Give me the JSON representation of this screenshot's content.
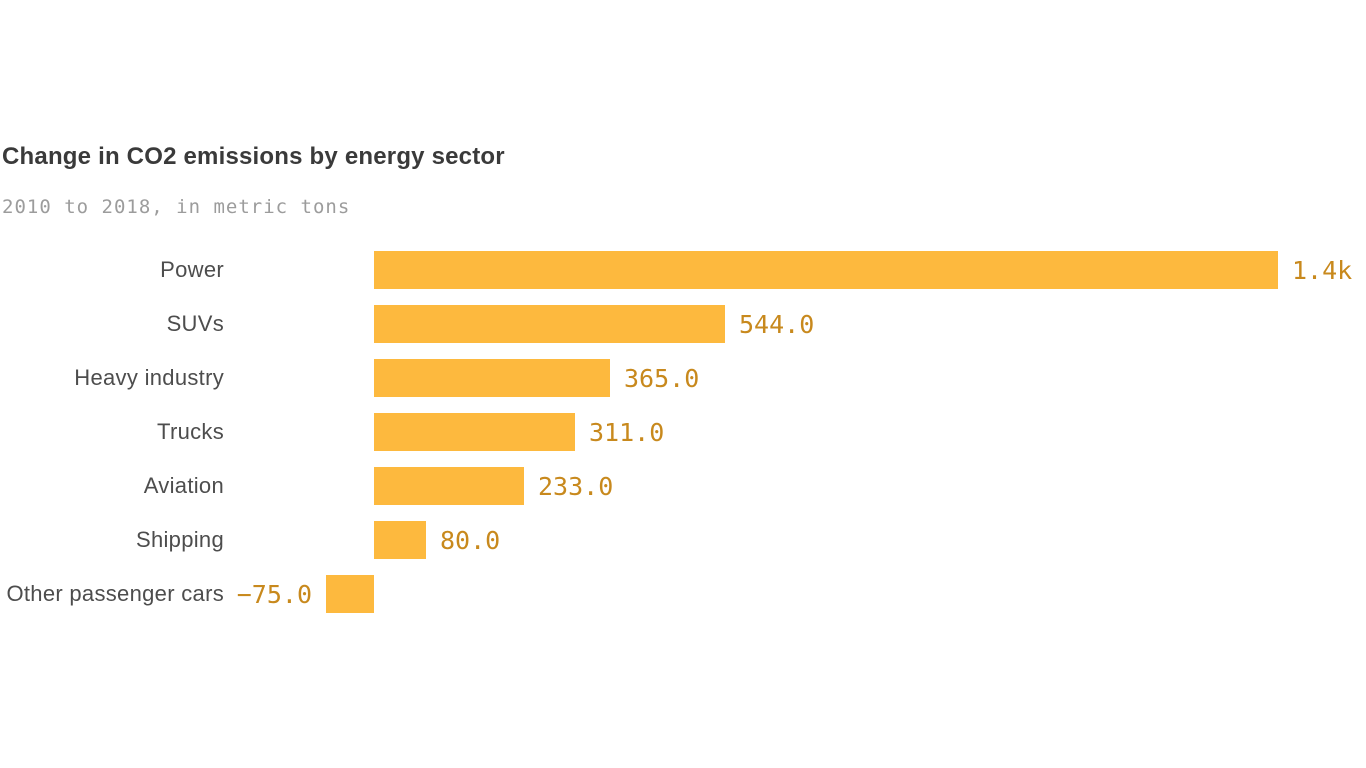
{
  "chart": {
    "title": "Change in CO2 emissions by energy sector",
    "subtitle": "2010 to 2018, in metric tons",
    "colors": {
      "bar": "#FDB93E",
      "value_label": "#C8891D",
      "category_label": "#4D4D4D",
      "title": "#3A3A3A",
      "subtitle": "#9C9C9C",
      "background": "#FFFFFF"
    }
  },
  "chart_data": {
    "type": "bar",
    "orientation": "horizontal",
    "title": "Change in CO2 emissions by energy sector",
    "subtitle": "2010 to 2018, in metric tons",
    "categories": [
      "Power",
      "SUVs",
      "Heavy industry",
      "Trucks",
      "Aviation",
      "Shipping",
      "Other passenger cars"
    ],
    "values": [
      1400,
      544,
      365,
      311,
      233,
      80,
      -75
    ],
    "value_labels": [
      "1.4k",
      "544.0",
      "365.0",
      "311.0",
      "233.0",
      "80.0",
      "−75.0"
    ],
    "units": "metric tons",
    "xlim": [
      -75,
      1400
    ],
    "grid": false,
    "legend": false,
    "value_label_position": "outside-end",
    "category_label_alignment": "right"
  }
}
